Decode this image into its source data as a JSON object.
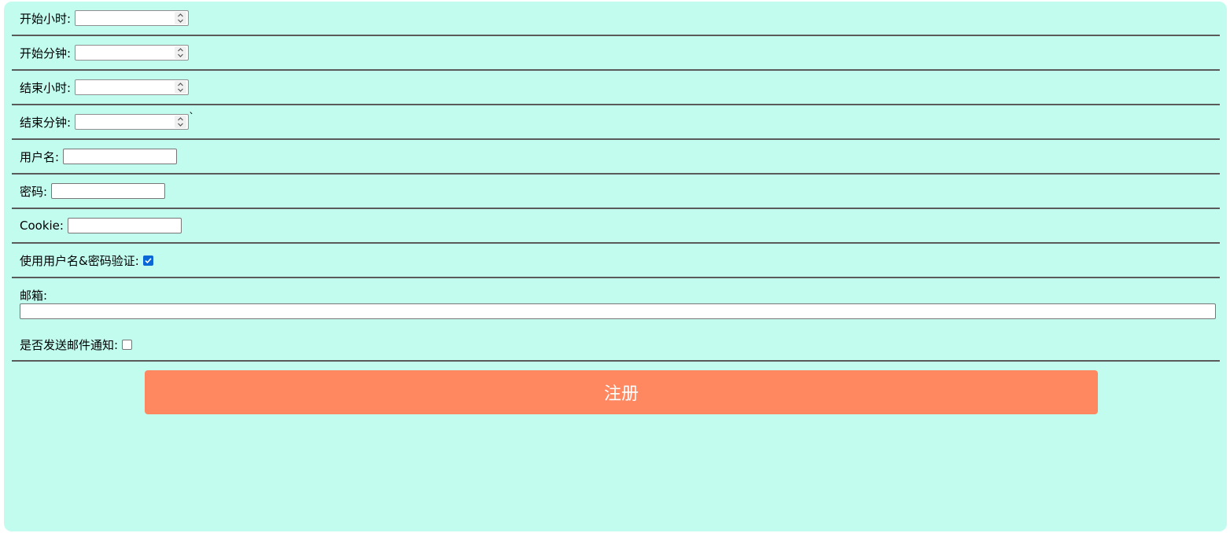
{
  "form": {
    "start_hour_label": "开始小时:",
    "start_minute_label": "开始分钟:",
    "end_hour_label": "结束小时:",
    "end_minute_label": "结束分钟:",
    "end_minute_suffix": "`",
    "username_label": "用户名:",
    "password_label": "密码:",
    "cookie_label": "Cookie:",
    "use_credentials_label": "使用用户名&密码验证:",
    "use_credentials_checked": true,
    "email_label": "邮箱:",
    "send_email_label": "是否发送邮件通知:",
    "send_email_checked": false,
    "submit_label": "注册"
  },
  "colors": {
    "panel_background": "#c1fcef",
    "submit_button": "#ff8860",
    "checkbox_checked": "#0b66d6",
    "divider": "#5a5a5a"
  },
  "icons": {
    "spinner": "spinner-up-down-icon",
    "checkmark": "checkmark-icon"
  }
}
